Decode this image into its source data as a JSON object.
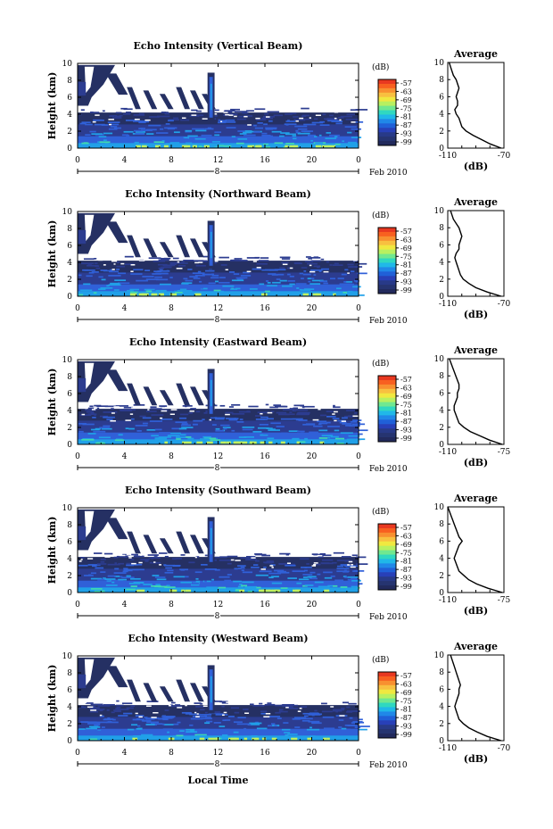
{
  "figure": {
    "xlabel": "Local Time",
    "date_label": "Feb 2010",
    "day_label": "8",
    "colorbar_label": "(dB)",
    "colorbar_ticks": [
      "-57",
      "-63",
      "-69",
      "-75",
      "-81",
      "-87",
      "-93",
      "-99"
    ],
    "colorbar_colors": [
      "#e83820",
      "#f86020",
      "#f89030",
      "#f8c040",
      "#f0e840",
      "#b8f060",
      "#70e890",
      "#30d8c0",
      "#20b8e8",
      "#2088e8",
      "#2060d8",
      "#2840b8",
      "#283a88",
      "#263470",
      "#222a5c"
    ],
    "heatmap_colors": {
      "sky": "#253063",
      "layer": "#2c3c90",
      "mid": "#3060d8",
      "bright": "#20a0e8",
      "hot": "#40d8b0",
      "warm": "#c0f060"
    }
  },
  "chart_data": [
    {
      "type": "heatmap",
      "title": "Echo Intensity (Vertical Beam)",
      "ylabel": "Height (km)",
      "x_ticks": [
        "0",
        "4",
        "8",
        "12",
        "16",
        "20",
        "0"
      ],
      "y_ticks": [
        "0",
        "2",
        "4",
        "6",
        "8",
        "10"
      ],
      "xlim": [
        0,
        24
      ],
      "ylim": [
        0,
        10
      ],
      "colorbar_range_db": [
        -99,
        -57
      ],
      "profile": {
        "title": "Average",
        "xlabel": "(dB)",
        "x_tick_labels": [
          "-110",
          "-70"
        ],
        "xlim": [
          -110,
          -70
        ],
        "y_ticks": [
          "0",
          "2",
          "4",
          "6",
          "8",
          "10"
        ],
        "height_km": [
          0,
          0.5,
          1,
          1.5,
          2,
          2.5,
          3,
          3.5,
          4,
          4.5,
          5,
          5.5,
          6,
          6.5,
          7,
          7.5,
          8,
          8.5,
          9,
          9.5,
          10
        ],
        "db": [
          -72,
          -80,
          -86,
          -92,
          -97,
          -100,
          -101,
          -102,
          -104,
          -105,
          -103,
          -103,
          -104,
          -103,
          -102,
          -103,
          -104,
          -106,
          -107,
          -108,
          -109
        ]
      }
    },
    {
      "type": "heatmap",
      "title": "Echo Intensity (Northward Beam)",
      "ylabel": "Height (km)",
      "x_ticks": [
        "0",
        "4",
        "8",
        "12",
        "16",
        "20",
        "0"
      ],
      "y_ticks": [
        "0",
        "2",
        "4",
        "6",
        "8",
        "10"
      ],
      "xlim": [
        0,
        24
      ],
      "ylim": [
        0,
        10
      ],
      "colorbar_range_db": [
        -99,
        -57
      ],
      "profile": {
        "title": "Average",
        "xlabel": "(dB)",
        "x_tick_labels": [
          "-110",
          "-70"
        ],
        "xlim": [
          -110,
          -70
        ],
        "y_ticks": [
          "0",
          "2",
          "4",
          "6",
          "8",
          "10"
        ],
        "height_km": [
          0,
          0.5,
          1,
          1.5,
          2,
          2.5,
          3,
          3.5,
          4,
          4.5,
          5,
          5.5,
          6,
          6.5,
          7,
          7.5,
          8,
          8.5,
          9,
          9.5,
          10
        ],
        "db": [
          -72,
          -82,
          -90,
          -95,
          -99,
          -101,
          -102,
          -103,
          -104,
          -105,
          -104,
          -102,
          -102,
          -101,
          -100,
          -101,
          -102,
          -104,
          -106,
          -107,
          -108
        ]
      }
    },
    {
      "type": "heatmap",
      "title": "Echo Intensity (Eastward Beam)",
      "ylabel": "Height (km)",
      "x_ticks": [
        "0",
        "4",
        "8",
        "12",
        "16",
        "20",
        "0"
      ],
      "y_ticks": [
        "0",
        "2",
        "4",
        "6",
        "8",
        "10"
      ],
      "xlim": [
        0,
        24
      ],
      "ylim": [
        0,
        10
      ],
      "colorbar_range_db": [
        -99,
        -57
      ],
      "profile": {
        "title": "Average",
        "xlabel": "(dB)",
        "x_tick_labels": [
          "-110",
          "-75"
        ],
        "xlim": [
          -110,
          -75
        ],
        "y_ticks": [
          "0",
          "2",
          "4",
          "6",
          "8",
          "10"
        ],
        "height_km": [
          0,
          0.5,
          1,
          1.5,
          2,
          2.5,
          3,
          3.5,
          4,
          4.5,
          5,
          5.5,
          6,
          6.5,
          7,
          7.5,
          8,
          8.5,
          9,
          9.5,
          10
        ],
        "db": [
          -76,
          -84,
          -90,
          -96,
          -100,
          -103,
          -104,
          -105,
          -106,
          -106,
          -105,
          -104,
          -104,
          -103,
          -103,
          -104,
          -105,
          -106,
          -107,
          -108,
          -109
        ]
      }
    },
    {
      "type": "heatmap",
      "title": "Echo Intensity (Southward Beam)",
      "ylabel": "Height (km)",
      "x_ticks": [
        "0",
        "4",
        "8",
        "12",
        "16",
        "20",
        "0"
      ],
      "y_ticks": [
        "0",
        "2",
        "4",
        "6",
        "8",
        "10"
      ],
      "xlim": [
        0,
        24
      ],
      "ylim": [
        0,
        10
      ],
      "colorbar_range_db": [
        -99,
        -57
      ],
      "profile": {
        "title": "Average",
        "xlabel": "(dB)",
        "x_tick_labels": [
          "-110",
          "-75"
        ],
        "xlim": [
          -110,
          -75
        ],
        "y_ticks": [
          "0",
          "2",
          "4",
          "6",
          "8",
          "10"
        ],
        "height_km": [
          0,
          0.5,
          1,
          1.5,
          2,
          2.5,
          3,
          3.5,
          4,
          4.5,
          5,
          5.5,
          6,
          6.5,
          7,
          7.5,
          8,
          8.5,
          9,
          9.5,
          10
        ],
        "db": [
          -76,
          -85,
          -92,
          -97,
          -100,
          -103,
          -104,
          -105,
          -106,
          -105,
          -104,
          -103,
          -101,
          -103,
          -104,
          -105,
          -106,
          -107,
          -108,
          -109,
          -110
        ]
      }
    },
    {
      "type": "heatmap",
      "title": "Echo Intensity (Westward Beam)",
      "ylabel": "Height (km)",
      "x_ticks": [
        "0",
        "4",
        "8",
        "12",
        "16",
        "20",
        "0"
      ],
      "y_ticks": [
        "0",
        "2",
        "4",
        "6",
        "8",
        "10"
      ],
      "xlim": [
        0,
        24
      ],
      "ylim": [
        0,
        10
      ],
      "colorbar_range_db": [
        -99,
        -57
      ],
      "profile": {
        "title": "Average",
        "xlabel": "(dB)",
        "x_tick_labels": [
          "-110",
          "-70"
        ],
        "xlim": [
          -110,
          -70
        ],
        "y_ticks": [
          "0",
          "2",
          "4",
          "6",
          "8",
          "10"
        ],
        "height_km": [
          0,
          0.5,
          1,
          1.5,
          2,
          2.5,
          3,
          3.5,
          4,
          4.5,
          5,
          5.5,
          6,
          6.5,
          7,
          7.5,
          8,
          8.5,
          9,
          9.5,
          10
        ],
        "db": [
          -72,
          -82,
          -89,
          -95,
          -99,
          -102,
          -103,
          -104,
          -105,
          -104,
          -103,
          -102,
          -102,
          -101,
          -102,
          -103,
          -104,
          -105,
          -106,
          -107,
          -108
        ]
      }
    }
  ]
}
